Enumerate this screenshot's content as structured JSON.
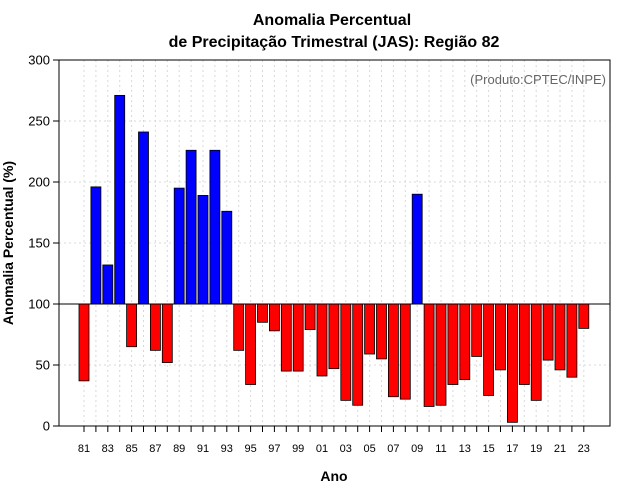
{
  "chart_data": {
    "type": "bar",
    "title_line1": "Anomalia Percentual",
    "title_line2": "de Precipitação Trimestral (JAS): Região 82",
    "xlabel": "Ano",
    "ylabel": "Anomalia Percentual (%)",
    "source_note": "(Produto:CPTEC/INPE)",
    "ylim": [
      0,
      300
    ],
    "yticks": [
      0,
      50,
      100,
      150,
      200,
      250,
      300
    ],
    "baseline": 100,
    "colors": {
      "above": "#0000ff",
      "below": "#ff0000"
    },
    "grid": true,
    "categories": [
      "81",
      "82",
      "83",
      "84",
      "85",
      "86",
      "87",
      "88",
      "89",
      "90",
      "91",
      "92",
      "93",
      "94",
      "95",
      "96",
      "97",
      "98",
      "99",
      "00",
      "01",
      "02",
      "03",
      "04",
      "05",
      "06",
      "07",
      "08",
      "09",
      "10",
      "11",
      "12",
      "13",
      "14",
      "15",
      "16",
      "17",
      "18",
      "19",
      "20",
      "21",
      "22",
      "23"
    ],
    "xtick_labels": [
      "81",
      "83",
      "85",
      "87",
      "89",
      "91",
      "93",
      "95",
      "97",
      "99",
      "01",
      "03",
      "05",
      "07",
      "09",
      "11",
      "13",
      "15",
      "17",
      "19",
      "21",
      "23"
    ],
    "values": [
      37,
      196,
      132,
      271,
      65,
      241,
      62,
      52,
      195,
      226,
      189,
      226,
      176,
      62,
      34,
      85,
      78,
      45,
      45,
      79,
      41,
      47,
      21,
      17,
      59,
      55,
      24,
      22,
      190,
      16,
      17,
      34,
      38,
      57,
      25,
      46,
      3,
      34,
      21,
      54,
      46,
      40,
      80
    ]
  }
}
